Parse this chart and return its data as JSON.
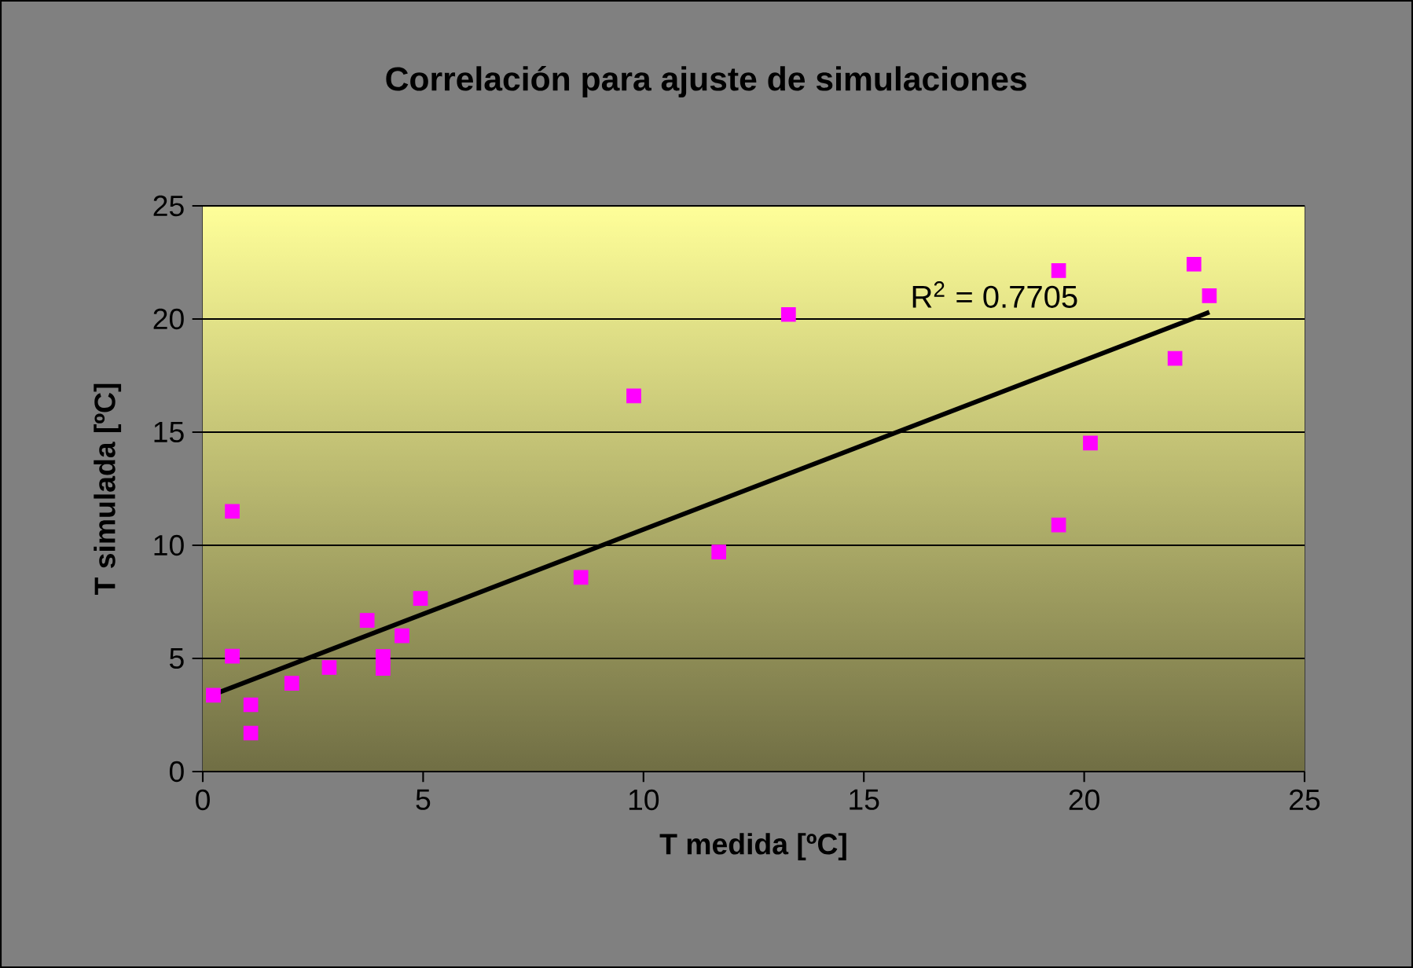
{
  "chart_data": {
    "type": "scatter",
    "title": "Correlación para ajuste de simulaciones",
    "xlabel": "T medida [ºC]",
    "ylabel": "T simulada [ºC]",
    "xlim": [
      0,
      25
    ],
    "ylim": [
      0,
      25
    ],
    "xticks": [
      0,
      5,
      10,
      15,
      20,
      25
    ],
    "yticks": [
      0,
      5,
      10,
      15,
      20,
      25
    ],
    "grid": "y",
    "annotations": [
      "R$^{2}$ = 0.7705"
    ],
    "series": [
      {
        "color": "#ff00ff",
        "marker": "square",
        "x": [
          0.24,
          0.67,
          0.67,
          1.09,
          1.09,
          2.02,
          2.87,
          3.73,
          4.09,
          4.09,
          4.52,
          4.94,
          8.58,
          9.78,
          11.71,
          13.29,
          19.42,
          19.42,
          20.14,
          22.06,
          22.49,
          22.84
        ],
        "values": [
          3.37,
          11.5,
          5.1,
          2.95,
          1.7,
          3.9,
          4.6,
          6.68,
          5.08,
          4.56,
          6.0,
          7.65,
          8.58,
          16.6,
          9.7,
          20.2,
          22.14,
          10.9,
          14.52,
          18.26,
          22.42,
          21.03
        ]
      },
      {
        "type": "line",
        "color": "#000000",
        "marker": "none",
        "x": [
          0.24,
          22.84
        ],
        "values": [
          3.4,
          20.3
        ]
      }
    ]
  }
}
